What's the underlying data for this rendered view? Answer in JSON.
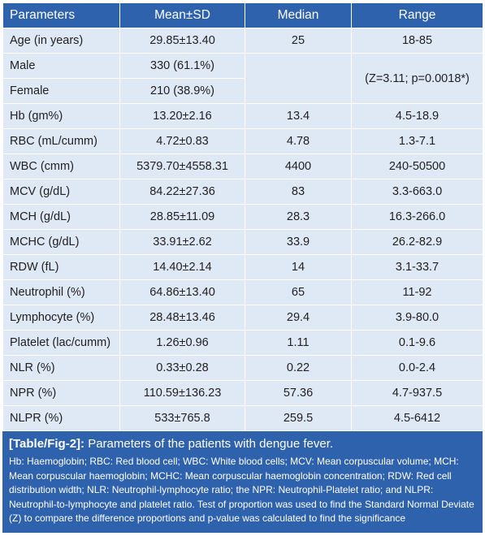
{
  "table": {
    "headers": [
      "Parameters",
      "Mean±SD",
      "Median",
      "Range"
    ],
    "rows": [
      {
        "param": "Age (in years)",
        "mean": "29.85±13.40",
        "median": "25",
        "range": "18-85"
      },
      {
        "param": "Male",
        "mean": "330 (61.1%)",
        "median": "",
        "range": "(Z=3.11; p=0.0018*)"
      },
      {
        "param": "Female",
        "mean": "210 (38.9%)",
        "median": "",
        "range": ""
      },
      {
        "param": "Hb (gm%)",
        "mean": "13.20±2.16",
        "median": "13.4",
        "range": "4.5-18.9"
      },
      {
        "param": "RBC (mL/cumm)",
        "mean": "4.72±0.83",
        "median": "4.78",
        "range": "1.3-7.1"
      },
      {
        "param": "WBC (cmm)",
        "mean": "5379.70±4558.31",
        "median": "4400",
        "range": "240-50500"
      },
      {
        "param": "MCV (g/dL)",
        "mean": "84.22±27.36",
        "median": "83",
        "range": "3.3-663.0"
      },
      {
        "param": "MCH (g/dL)",
        "mean": "28.85±11.09",
        "median": "28.3",
        "range": "16.3-266.0"
      },
      {
        "param": "MCHC (g/dL)",
        "mean": "33.91±2.62",
        "median": "33.9",
        "range": "26.2-82.9"
      },
      {
        "param": "RDW (fL)",
        "mean": "14.40±2.14",
        "median": "14",
        "range": "3.1-33.7"
      },
      {
        "param": "Neutrophil (%)",
        "mean": "64.86±13.40",
        "median": "65",
        "range": "11-92"
      },
      {
        "param": "Lymphocyte (%)",
        "mean": "28.48±13.46",
        "median": "29.4",
        "range": "3.9-80.0"
      },
      {
        "param": "Platelet (lac/cumm)",
        "mean": "1.26±0.96",
        "median": "1.11",
        "range": "0.1-9.6"
      },
      {
        "param": "NLR (%)",
        "mean": "0.33±0.28",
        "median": "0.22",
        "range": "0.0-2.4"
      },
      {
        "param": "NPR (%)",
        "mean": "110.59±136.23",
        "median": "57.36",
        "range": "4.7-937.5"
      },
      {
        "param": "NLPR (%)",
        "mean": "533±765.8",
        "median": "259.5",
        "range": "4.5-6412"
      }
    ]
  },
  "caption": {
    "label": "[Table/Fig-2]:",
    "title": " Parameters of the patients with dengue fever.",
    "note": "Hb: Haemoglobin; RBC: Red blood cell; WBC: White blood cells; MCV: Mean corpuscular volume; MCH: Mean corpuscular haemoglobin; MCHC: Mean corpuscular haemoglobin concentration; RDW: Red cell distribution width; NLR: Neutrophil-lymphocyte ratio; the NPR: Neutrophil-Platelet ratio; and NLPR: Neutrophil-to-lymphocyte and platelet ratio. Test of proportion was used to find the Standard Normal Deviate (Z) to compare the difference proportions and p-value was calculated to find the significance"
  },
  "colors": {
    "header_bg": "#2f62ad",
    "cell_bg": "#dfe8f5"
  }
}
